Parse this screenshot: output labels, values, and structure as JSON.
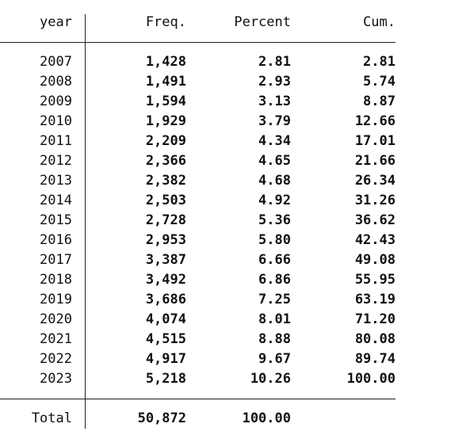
{
  "table": {
    "headers": {
      "year": "year",
      "freq": "Freq.",
      "percent": "Percent",
      "cum": "Cum."
    },
    "rows": [
      {
        "year": "2007",
        "freq": "1,428",
        "percent": "2.81",
        "cum": "2.81"
      },
      {
        "year": "2008",
        "freq": "1,491",
        "percent": "2.93",
        "cum": "5.74"
      },
      {
        "year": "2009",
        "freq": "1,594",
        "percent": "3.13",
        "cum": "8.87"
      },
      {
        "year": "2010",
        "freq": "1,929",
        "percent": "3.79",
        "cum": "12.66"
      },
      {
        "year": "2011",
        "freq": "2,209",
        "percent": "4.34",
        "cum": "17.01"
      },
      {
        "year": "2012",
        "freq": "2,366",
        "percent": "4.65",
        "cum": "21.66"
      },
      {
        "year": "2013",
        "freq": "2,382",
        "percent": "4.68",
        "cum": "26.34"
      },
      {
        "year": "2014",
        "freq": "2,503",
        "percent": "4.92",
        "cum": "31.26"
      },
      {
        "year": "2015",
        "freq": "2,728",
        "percent": "5.36",
        "cum": "36.62"
      },
      {
        "year": "2016",
        "freq": "2,953",
        "percent": "5.80",
        "cum": "42.43"
      },
      {
        "year": "2017",
        "freq": "3,387",
        "percent": "6.66",
        "cum": "49.08"
      },
      {
        "year": "2018",
        "freq": "3,492",
        "percent": "6.86",
        "cum": "55.95"
      },
      {
        "year": "2019",
        "freq": "3,686",
        "percent": "7.25",
        "cum": "63.19"
      },
      {
        "year": "2020",
        "freq": "4,074",
        "percent": "8.01",
        "cum": "71.20"
      },
      {
        "year": "2021",
        "freq": "4,515",
        "percent": "8.88",
        "cum": "80.08"
      },
      {
        "year": "2022",
        "freq": "4,917",
        "percent": "9.67",
        "cum": "89.74"
      },
      {
        "year": "2023",
        "freq": "5,218",
        "percent": "10.26",
        "cum": "100.00"
      }
    ],
    "total": {
      "label": "Total",
      "freq": "50,872",
      "percent": "100.00"
    }
  }
}
